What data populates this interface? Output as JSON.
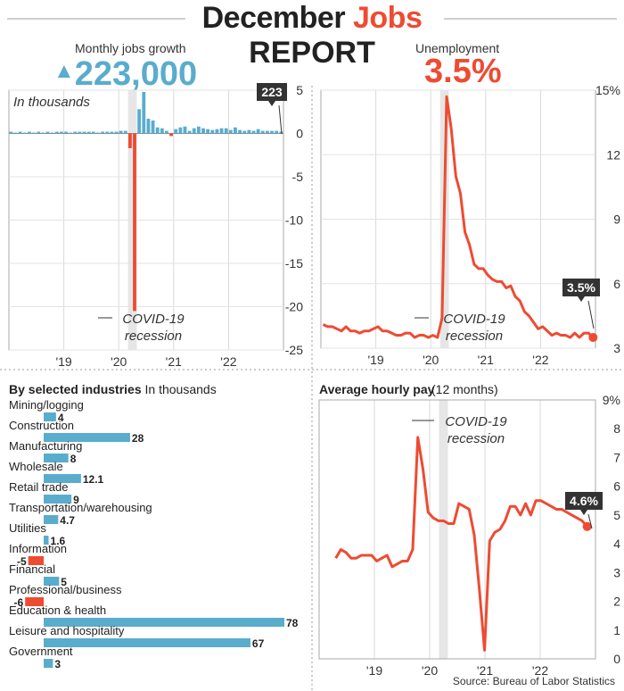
{
  "header": {
    "title_part1": "December",
    "title_part2": "Jobs",
    "subtitle": "REPORT",
    "jobs_label": "Monthly jobs growth",
    "jobs_value": "223,000",
    "unemp_label": "Unemployment",
    "unemp_value": "3.5%"
  },
  "colors": {
    "blue": "#5aaccd",
    "red": "#ee4b32",
    "dark": "#333333",
    "shade": "#e6e6e6"
  },
  "source": "Source: Bureau of Labor Statistics",
  "chart_data": [
    {
      "id": "jobs",
      "type": "bar",
      "unit_note": "In thousands",
      "ylim": [
        -25,
        5
      ],
      "yticks": [
        5,
        0,
        -5,
        -10,
        -15,
        -20,
        -25
      ],
      "xticks": [
        {
          "label": "'19",
          "x": 2019.0
        },
        {
          "label": "'20",
          "x": 2020.0
        },
        {
          "label": "'21",
          "x": 2021.0
        },
        {
          "label": "'22",
          "x": 2022.0
        }
      ],
      "xlim": [
        2018.0,
        2023.0
      ],
      "recession": [
        2020.17,
        2020.33
      ],
      "annotation": {
        "line1": "COVID-19",
        "line2": "recession"
      },
      "callout": "223",
      "values": [
        0.2,
        0.1,
        0.2,
        0.1,
        0.2,
        0.1,
        0.2,
        0.1,
        0.2,
        0.1,
        0.2,
        0.2,
        0.2,
        0.1,
        0.2,
        0.2,
        0.2,
        0.2,
        0.2,
        0.1,
        0.2,
        0.2,
        0.2,
        0.2,
        0.3,
        0.3,
        -1.7,
        -20.5,
        2.8,
        4.8,
        1.7,
        1.5,
        0.7,
        0.6,
        0.3,
        -0.3,
        0.5,
        0.7,
        0.8,
        0.3,
        0.6,
        0.8,
        0.6,
        0.5,
        0.4,
        0.5,
        0.6,
        0.6,
        0.4,
        0.7,
        0.4,
        0.3,
        0.4,
        0.3,
        0.5,
        0.3,
        0.3,
        0.3,
        0.3,
        0.2
      ]
    },
    {
      "id": "unemployment",
      "type": "line",
      "ylim": [
        3,
        15
      ],
      "yticks": [
        {
          "v": 15,
          "label": "15%"
        },
        {
          "v": 12,
          "label": "12"
        },
        {
          "v": 9,
          "label": "9"
        },
        {
          "v": 6,
          "label": "6"
        },
        {
          "v": 3,
          "label": "3"
        }
      ],
      "xticks": [
        {
          "label": "'19",
          "x": 2019.0
        },
        {
          "label": "'20",
          "x": 2020.0
        },
        {
          "label": "'21",
          "x": 2021.0
        },
        {
          "label": "'22",
          "x": 2022.0
        }
      ],
      "xlim": [
        2018.0,
        2023.0
      ],
      "recession": [
        2020.17,
        2020.33
      ],
      "annotation": {
        "line1": "COVID-19",
        "line2": "recession"
      },
      "callout": "3.5%",
      "values": [
        4.1,
        4.0,
        4.0,
        3.9,
        3.8,
        4.0,
        3.8,
        3.8,
        3.7,
        3.8,
        3.8,
        3.9,
        4.0,
        3.8,
        3.8,
        3.7,
        3.6,
        3.6,
        3.7,
        3.7,
        3.5,
        3.6,
        3.6,
        3.5,
        3.6,
        3.5,
        4.4,
        14.7,
        13.2,
        11.0,
        10.2,
        8.4,
        7.8,
        6.9,
        6.7,
        6.7,
        6.4,
        6.2,
        6.1,
        6.1,
        5.8,
        5.9,
        5.4,
        5.2,
        4.7,
        4.5,
        4.2,
        3.9,
        4.0,
        3.8,
        3.6,
        3.7,
        3.6,
        3.6,
        3.5,
        3.7,
        3.5,
        3.7,
        3.7,
        3.5
      ]
    },
    {
      "id": "industries",
      "type": "bar",
      "title": "By selected industries",
      "unit_note": "In thousands",
      "categories": [
        "Mining/logging",
        "Construction",
        "Manufacturing",
        "Wholesale",
        "Retail trade",
        "Transportation/warehousing",
        "Utilities",
        "Information",
        "Financial",
        "Professional/business",
        "Education & health",
        "Leisure and hospitality",
        "Government"
      ],
      "values": [
        4,
        28,
        8,
        12.1,
        9,
        4.7,
        1.6,
        -5,
        5,
        -6,
        78,
        67,
        3
      ],
      "labels": [
        "4",
        "28",
        "8",
        "12.1",
        "9",
        "4.7",
        "1.6",
        "-5",
        "5",
        "-6",
        "78",
        "67",
        "3"
      ]
    },
    {
      "id": "hourly_pay",
      "type": "line",
      "title": "Average hourly pay",
      "title_note": "(12 months)",
      "ylim": [
        0,
        9
      ],
      "yticks": [
        {
          "v": 9,
          "label": "9%"
        },
        {
          "v": 8,
          "label": "8"
        },
        {
          "v": 7,
          "label": "7"
        },
        {
          "v": 6,
          "label": "6"
        },
        {
          "v": 5,
          "label": "5"
        },
        {
          "v": 4,
          "label": "4"
        },
        {
          "v": 3,
          "label": "3"
        },
        {
          "v": 2,
          "label": "2"
        },
        {
          "v": 1,
          "label": "1"
        },
        {
          "v": 0,
          "label": "0"
        }
      ],
      "xticks": [
        {
          "label": "'19",
          "x": 2019.0
        },
        {
          "label": "'20",
          "x": 2020.0
        },
        {
          "label": "'21",
          "x": 2021.0
        },
        {
          "label": "'22",
          "x": 2022.0
        }
      ],
      "xlim": [
        2018.0,
        2023.0
      ],
      "recession": [
        2020.17,
        2020.33
      ],
      "annotation": {
        "line1": "COVID-19",
        "line2": "recession"
      },
      "callout": "4.6%",
      "values": [
        3.5,
        3.8,
        3.7,
        3.5,
        3.5,
        3.6,
        3.6,
        3.6,
        3.4,
        3.5,
        3.6,
        3.2,
        3.3,
        3.4,
        3.4,
        3.8,
        7.7,
        6.6,
        5.1,
        4.9,
        4.8,
        4.8,
        4.7,
        4.7,
        5.4,
        5.3,
        5.2,
        4.3,
        2.4,
        0.3,
        4.1,
        4.4,
        4.5,
        4.8,
        5.3,
        5.3,
        5.0,
        5.4,
        5.0,
        5.5,
        5.5,
        5.4,
        5.3,
        5.2,
        5.2,
        5.1,
        5.0,
        4.9,
        4.8,
        4.6
      ]
    }
  ]
}
